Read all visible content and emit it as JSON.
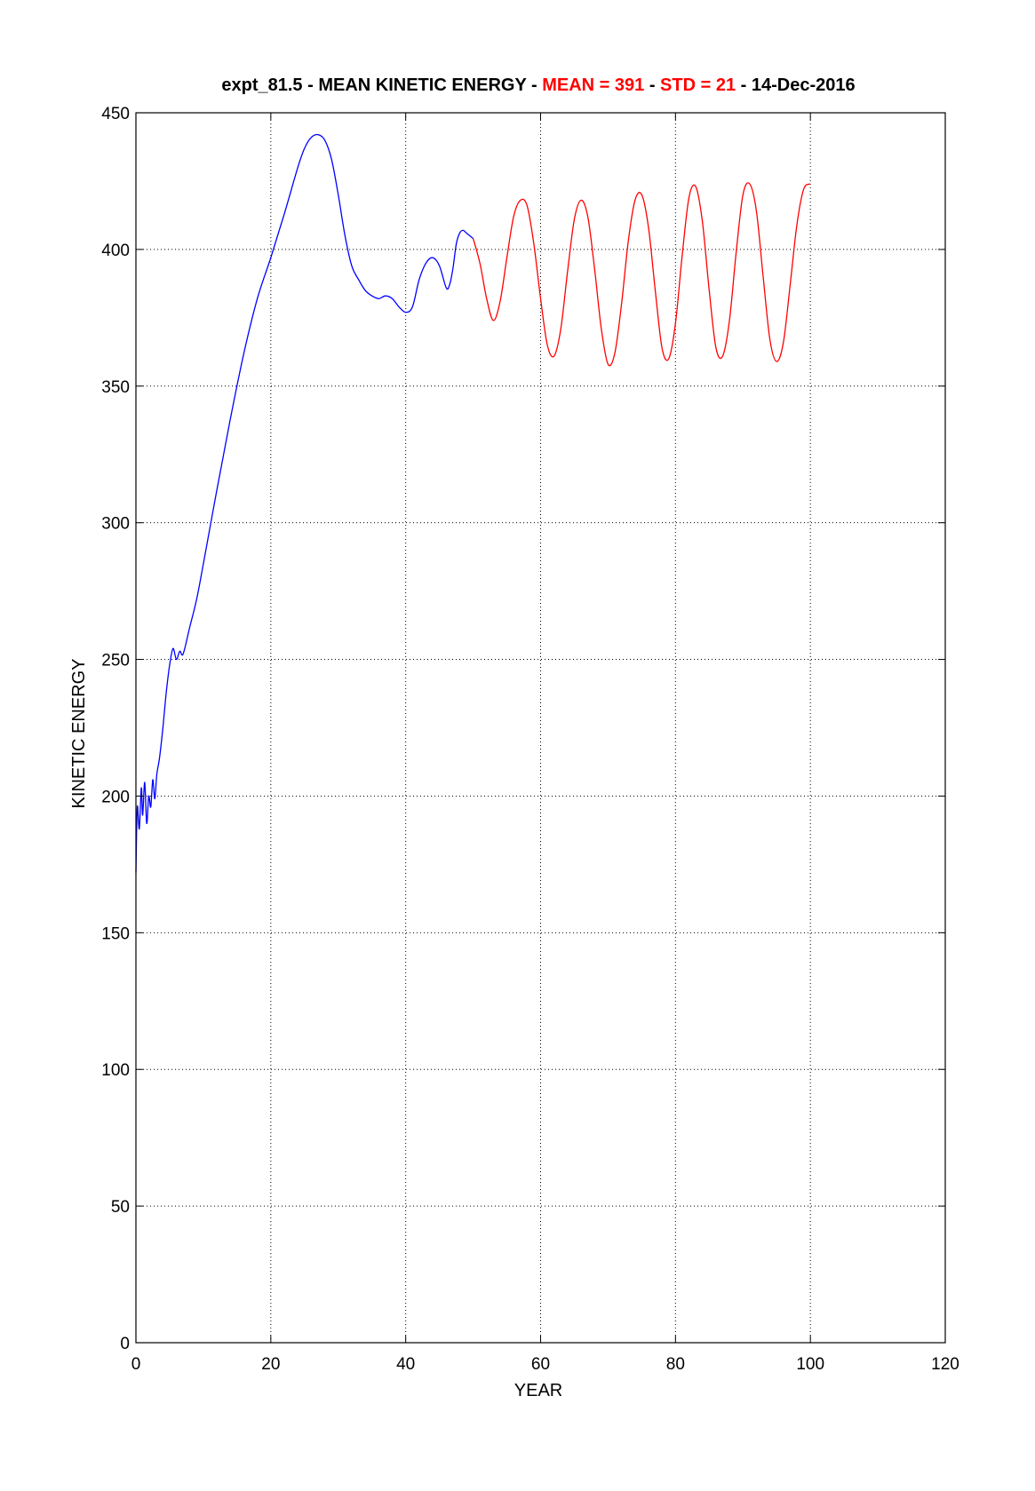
{
  "chart_data": {
    "type": "line",
    "title": {
      "prefix": "expt_81.5 - MEAN KINETIC ENERGY - ",
      "mean_label": "MEAN = ",
      "mean_value": "391",
      "sep1": " - ",
      "std_label": "STD = ",
      "std_value": "21",
      "suffix": " - 14-Dec-2016"
    },
    "xlabel": "YEAR",
    "ylabel": "KINETIC ENERGY",
    "xlim": [
      0,
      120
    ],
    "ylim": [
      0,
      450
    ],
    "xticks": [
      0,
      20,
      40,
      60,
      80,
      100,
      120
    ],
    "yticks": [
      0,
      50,
      100,
      150,
      200,
      250,
      300,
      350,
      400,
      450
    ],
    "grid": true,
    "colors": {
      "spinup": "#0000ff",
      "analysis": "#ff0000",
      "highlight": "#ff0000",
      "text": "#000000"
    },
    "series": [
      {
        "color": "#0000ff",
        "x": [
          0,
          0.2,
          0.5,
          0.8,
          1.0,
          1.3,
          1.6,
          1.9,
          2.2,
          2.5,
          2.8,
          3.1,
          3.5,
          4,
          4.5,
          5,
          5.5,
          6,
          6.5,
          7,
          8,
          9,
          10,
          12,
          14,
          16,
          18,
          20,
          22,
          24,
          25,
          26,
          27,
          28,
          29,
          30,
          31,
          32,
          33,
          34,
          35,
          36,
          37,
          38,
          39,
          40,
          41,
          42,
          43,
          44,
          45,
          46,
          46.5,
          47,
          47.5,
          48,
          48.5,
          49,
          49.5,
          50
        ],
        "y": [
          172,
          196,
          188,
          203,
          193,
          205,
          190,
          200,
          196,
          206,
          199,
          208,
          214,
          225,
          238,
          248,
          254,
          250,
          253,
          252,
          262,
          272,
          285,
          312,
          338,
          362,
          382,
          397,
          413,
          430,
          437,
          441,
          442,
          440,
          433,
          420,
          405,
          394,
          389,
          385,
          383,
          382,
          383,
          382,
          379,
          377,
          379,
          389,
          395,
          397,
          394,
          386,
          387,
          393,
          402,
          406,
          407,
          406,
          405,
          404
        ]
      },
      {
        "color": "#ff0000",
        "x": [
          50,
          51,
          52,
          53,
          54,
          55,
          56,
          57,
          58,
          59,
          60,
          61,
          62,
          63,
          64,
          65,
          66,
          67,
          68,
          69,
          70,
          71,
          72,
          73,
          74,
          75,
          76,
          77,
          78,
          79,
          80,
          81,
          82,
          83,
          84,
          85,
          86,
          87,
          88,
          89,
          90,
          91,
          92,
          93,
          94,
          95,
          96,
          97,
          98,
          99,
          100
        ],
        "y": [
          404,
          395,
          382,
          374,
          381,
          397,
          412,
          418,
          416,
          402,
          382,
          365,
          361,
          371,
          392,
          411,
          418,
          412,
          393,
          371,
          358,
          362,
          380,
          403,
          418,
          420,
          408,
          385,
          364,
          360,
          373,
          398,
          419,
          423,
          410,
          385,
          364,
          361,
          374,
          399,
          420,
          424,
          414,
          390,
          367,
          359,
          366,
          387,
          409,
          422,
          424
        ]
      }
    ]
  }
}
